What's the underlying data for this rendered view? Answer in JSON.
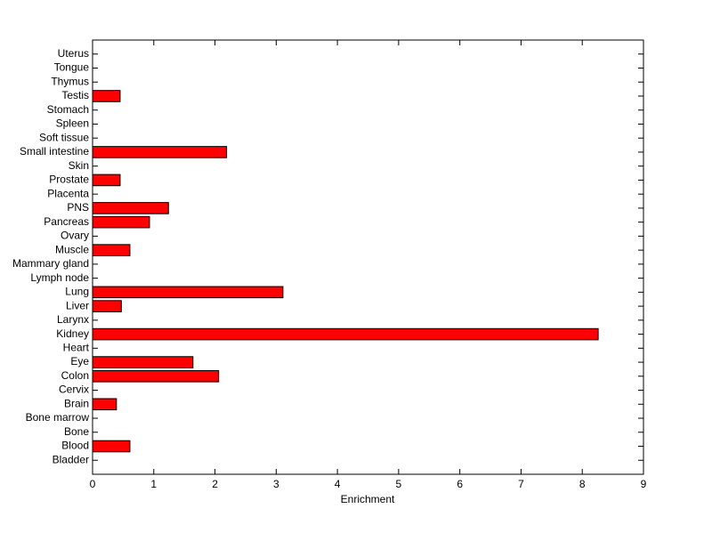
{
  "chart_data": {
    "type": "barh",
    "x_label": "Enrichment",
    "categories": [
      "Bladder",
      "Blood",
      "Bone",
      "Bone marrow",
      "Brain",
      "Cervix",
      "Colon",
      "Eye",
      "Heart",
      "Kidney",
      "Larynx",
      "Liver",
      "Lung",
      "Lymph node",
      "Mammary gland",
      "Muscle",
      "Ovary",
      "Pancreas",
      "PNS",
      "Placenta",
      "Prostate",
      "Skin",
      "Small intestine",
      "Soft tissue",
      "Spleen",
      "Stomach",
      "Testis",
      "Thymus",
      "Tongue",
      "Uterus"
    ],
    "values": [
      0,
      0.61,
      0,
      0,
      0.39,
      0,
      2.06,
      1.64,
      0,
      8.26,
      0,
      0.47,
      3.11,
      0,
      0,
      0.61,
      0,
      0.93,
      1.24,
      0,
      0.45,
      0,
      2.19,
      0,
      0,
      0,
      0.45,
      0,
      0,
      0
    ],
    "color": "#ff0000",
    "xlim": [
      0,
      9
    ],
    "xticks": [
      0,
      1,
      2,
      3,
      4,
      5,
      6,
      7,
      8,
      9
    ]
  }
}
